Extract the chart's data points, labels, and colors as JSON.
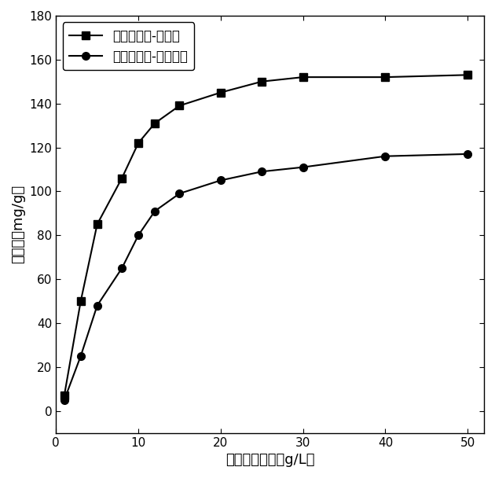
{
  "series1_label": "丙酮吸附量-不可溶",
  "series2_label": "丙酮吸附量-原木质素",
  "series1_x": [
    1,
    3,
    5,
    8,
    10,
    12,
    15,
    20,
    25,
    30,
    40,
    50
  ],
  "series1_y": [
    7,
    50,
    85,
    106,
    122,
    131,
    139,
    145,
    150,
    152,
    152,
    153
  ],
  "series2_x": [
    1,
    3,
    5,
    8,
    10,
    12,
    15,
    20,
    25,
    30,
    40,
    50
  ],
  "series2_y": [
    5,
    25,
    48,
    65,
    80,
    91,
    99,
    105,
    109,
    111,
    116,
    117
  ],
  "xlabel": "丙酮平衡浓度（g/L）",
  "ylabel": "吸附量（mg/g）",
  "xlim": [
    0,
    52
  ],
  "ylim": [
    -10,
    180
  ],
  "xticks": [
    0,
    10,
    20,
    30,
    40,
    50
  ],
  "yticks": [
    0,
    20,
    40,
    60,
    80,
    100,
    120,
    140,
    160,
    180
  ],
  "line_color": "#000000",
  "marker_square": "s",
  "marker_circle": "o",
  "marker_size": 7,
  "line_width": 1.5,
  "axis_fontsize": 13,
  "tick_fontsize": 11,
  "legend_fontsize": 12,
  "figure_width": 6.3,
  "figure_height": 6.08,
  "dpi": 100
}
